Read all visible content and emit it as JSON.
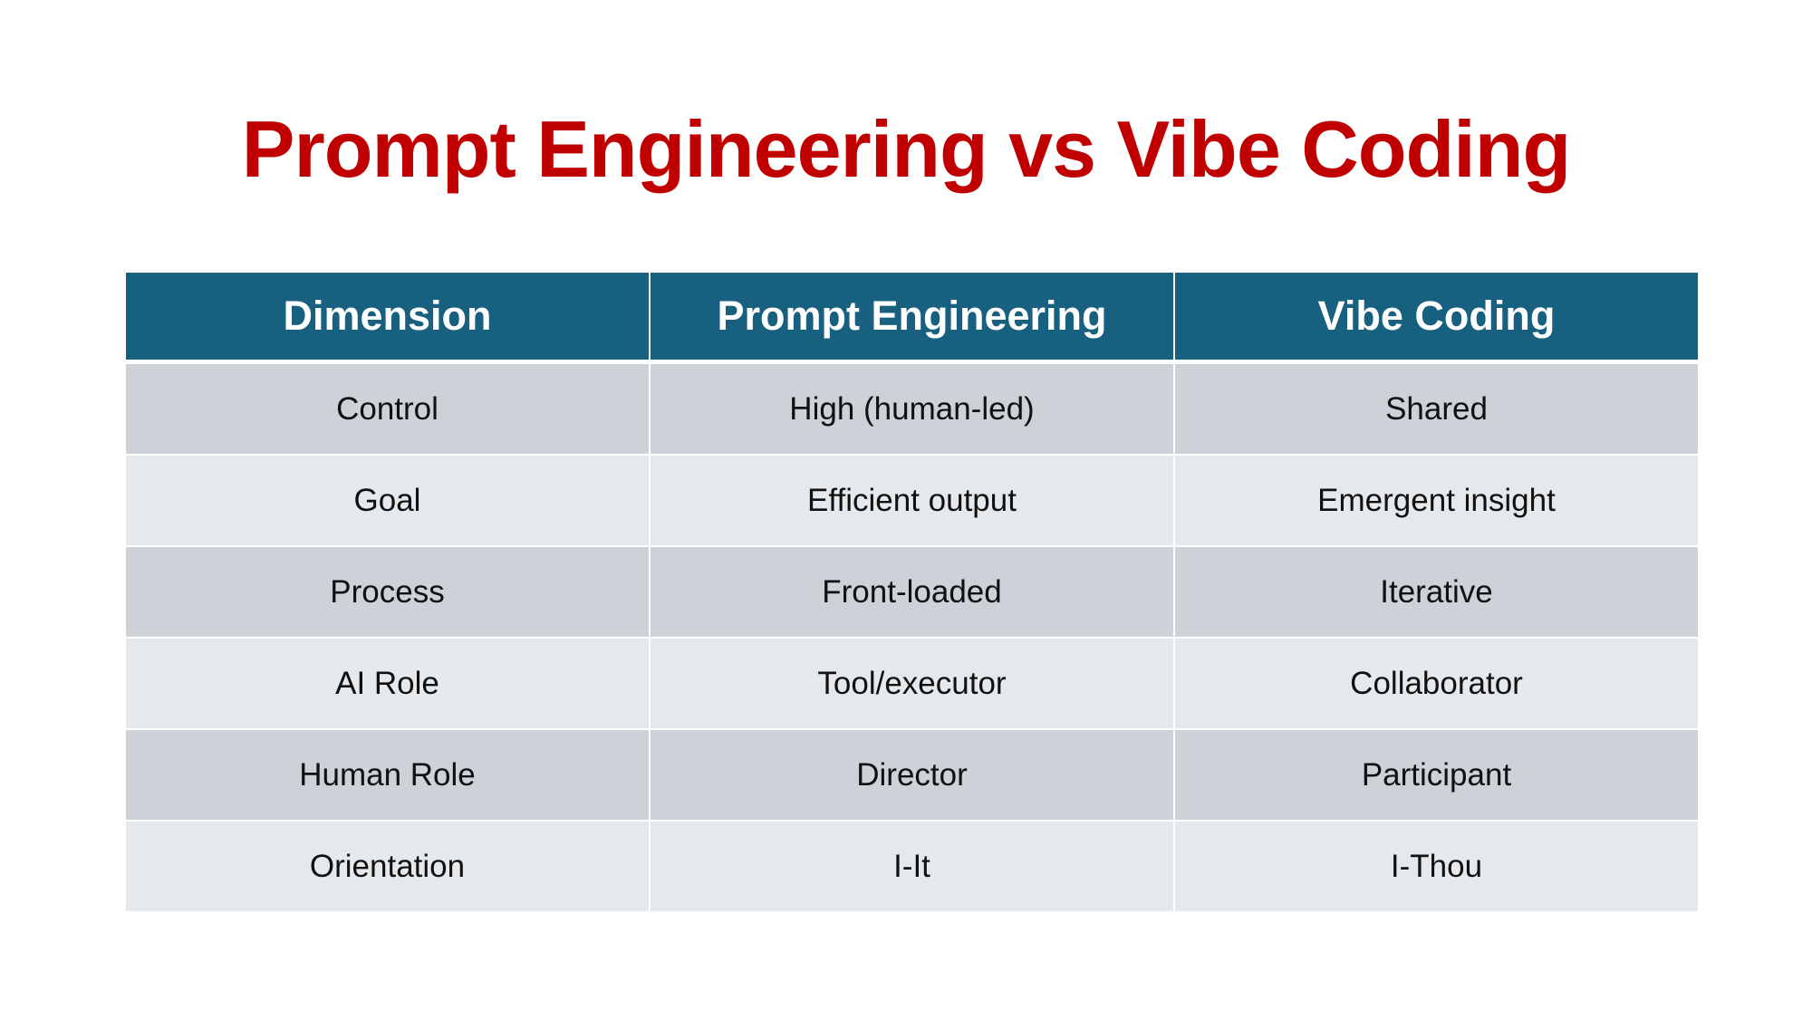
{
  "slide": {
    "title": "Prompt Engineering vs Vibe Coding",
    "title_color": "#c00000",
    "header_color": "#17607f"
  },
  "table": {
    "headers": [
      "Dimension",
      "Prompt Engineering",
      "Vibe Coding"
    ],
    "rows": [
      [
        "Control",
        "High (human-led)",
        "Shared"
      ],
      [
        "Goal",
        "Efficient output",
        "Emergent insight"
      ],
      [
        "Process",
        "Front-loaded",
        "Iterative"
      ],
      [
        "AI Role",
        "Tool/executor",
        "Collaborator"
      ],
      [
        "Human Role",
        "Director",
        "Participant"
      ],
      [
        "Orientation",
        "I-It",
        "I-Thou"
      ]
    ]
  }
}
